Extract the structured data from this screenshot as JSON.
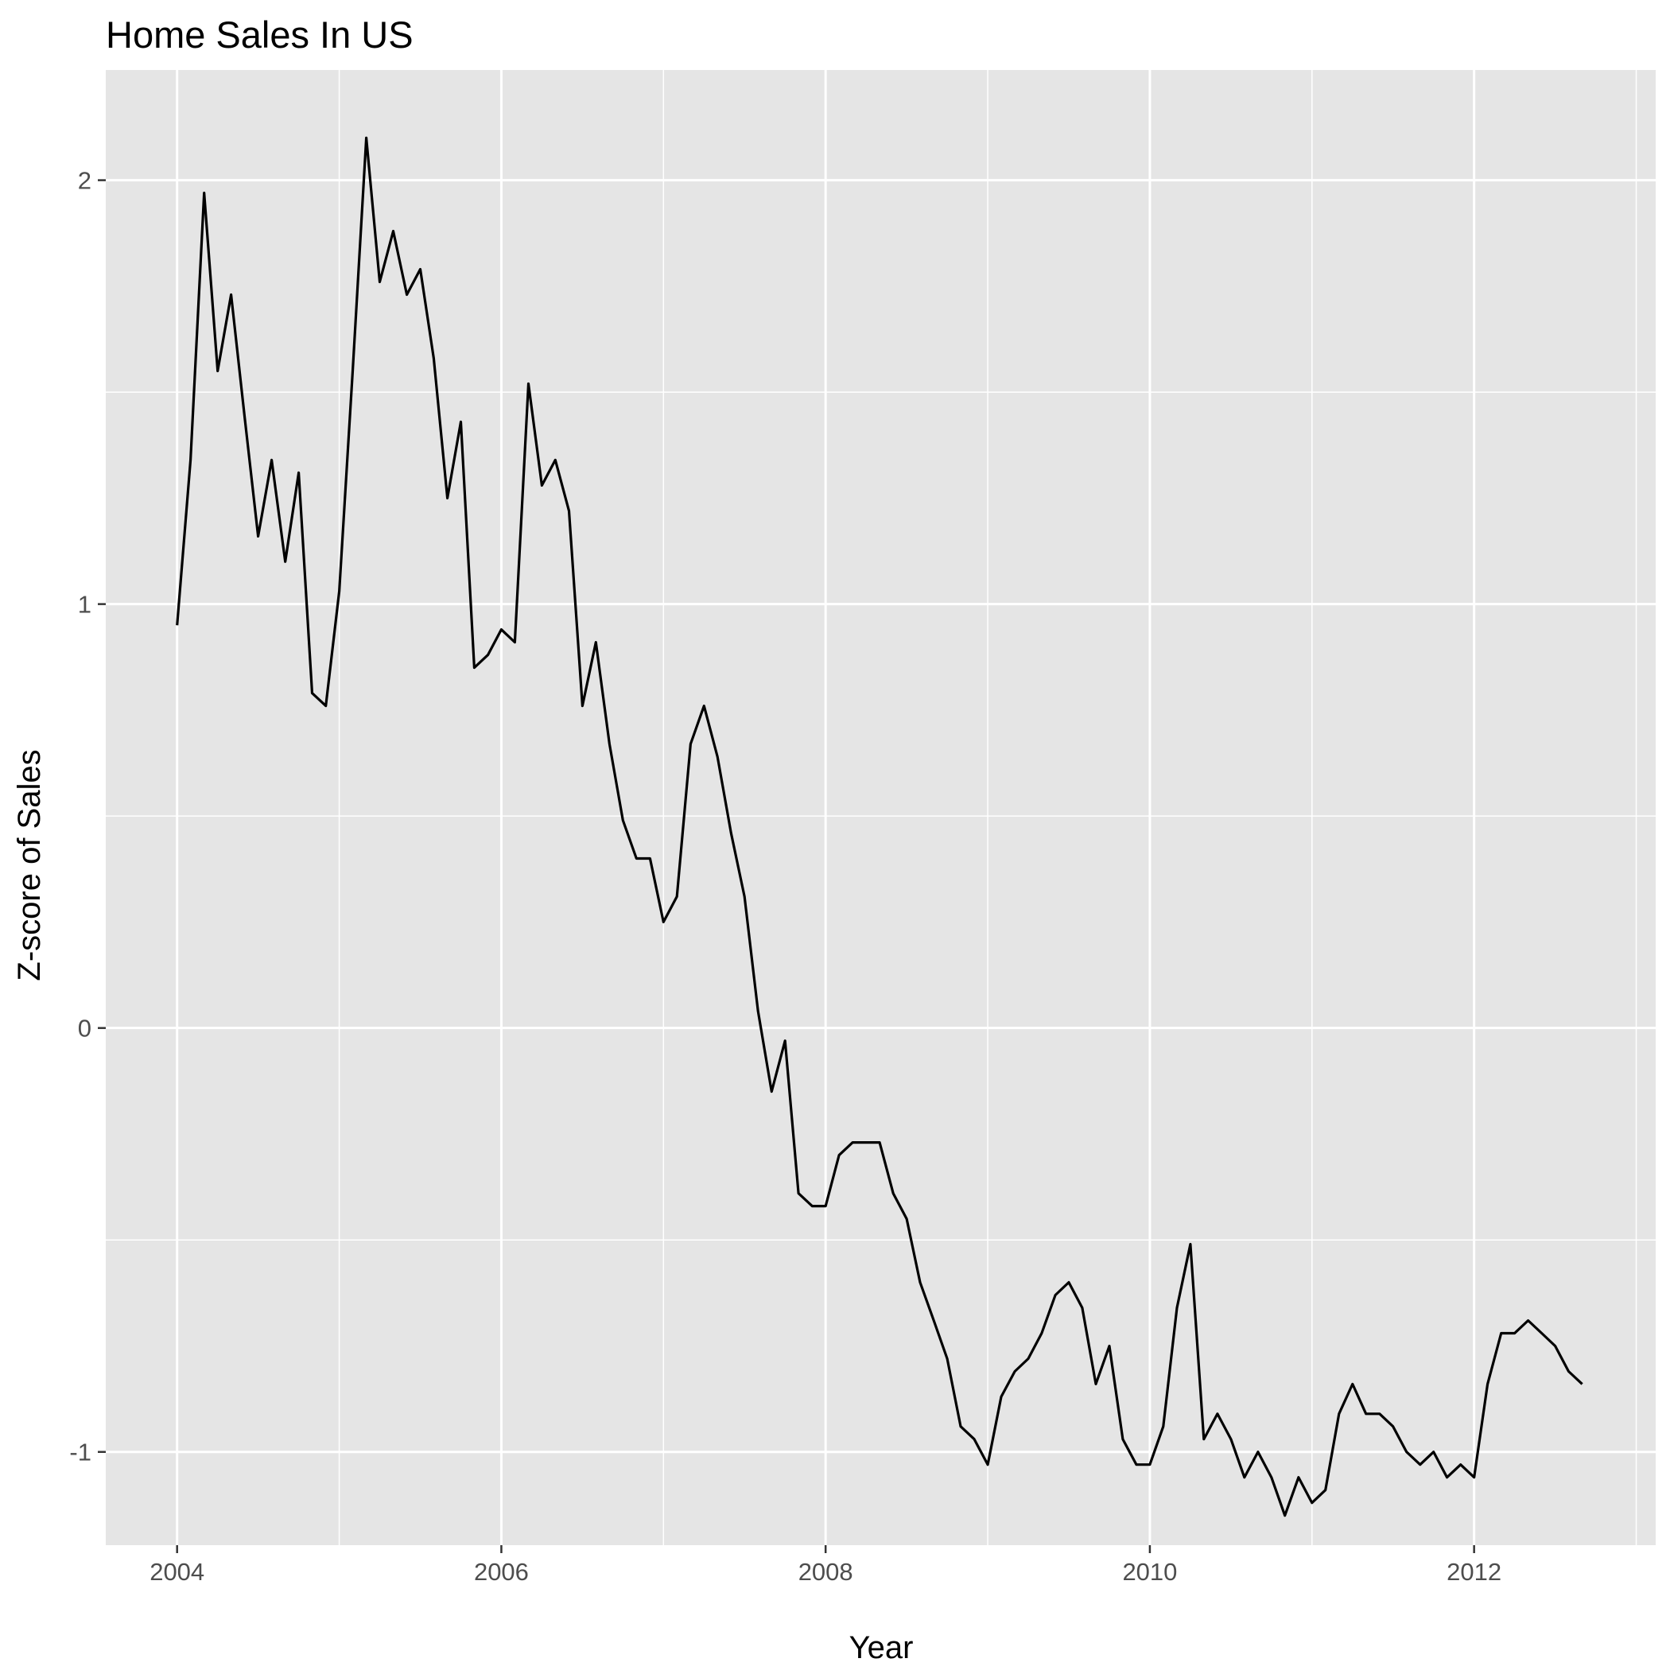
{
  "chart_data": {
    "type": "line",
    "title": "Home Sales In US",
    "xlabel": "Year",
    "ylabel": "Z-score of Sales",
    "xlim": [
      2003.56,
      2013.12
    ],
    "ylim": [
      -1.22,
      2.26
    ],
    "x_ticks": [
      2004,
      2006,
      2008,
      2010,
      2012
    ],
    "x_tick_labels": [
      "2004",
      "2006",
      "2008",
      "2010",
      "2012"
    ],
    "x_minor_ticks": [
      2005,
      2007,
      2009,
      2011,
      2013
    ],
    "y_ticks": [
      -1,
      0,
      1,
      2
    ],
    "y_tick_labels": [
      "-1",
      "0",
      "1",
      "2"
    ],
    "y_minor_ticks": [
      -0.5,
      0.5,
      1.5
    ],
    "grid": true,
    "legend": "none",
    "colors": {
      "panel_background": "#e5e5e5",
      "grid_line": "#ffffff",
      "series_line": "#000000",
      "tick_mark": "#333333"
    },
    "series": [
      {
        "x": [
          2004.0,
          2004.083,
          2004.167,
          2004.25,
          2004.333,
          2004.417,
          2004.5,
          2004.583,
          2004.667,
          2004.75,
          2004.833,
          2004.917,
          2005.0,
          2005.083,
          2005.167,
          2005.25,
          2005.333,
          2005.417,
          2005.5,
          2005.583,
          2005.667,
          2005.75,
          2005.833,
          2005.917,
          2006.0,
          2006.083,
          2006.167,
          2006.25,
          2006.333,
          2006.417,
          2006.5,
          2006.583,
          2006.667,
          2006.75,
          2006.833,
          2006.917,
          2007.0,
          2007.083,
          2007.167,
          2007.25,
          2007.333,
          2007.417,
          2007.5,
          2007.583,
          2007.667,
          2007.75,
          2007.833,
          2007.917,
          2008.0,
          2008.083,
          2008.167,
          2008.25,
          2008.333,
          2008.417,
          2008.5,
          2008.583,
          2008.667,
          2008.75,
          2008.833,
          2008.917,
          2009.0,
          2009.083,
          2009.167,
          2009.25,
          2009.333,
          2009.417,
          2009.5,
          2009.583,
          2009.667,
          2009.75,
          2009.833,
          2009.917,
          2010.0,
          2010.083,
          2010.167,
          2010.25,
          2010.333,
          2010.417,
          2010.5,
          2010.583,
          2010.667,
          2010.75,
          2010.833,
          2010.917,
          2011.0,
          2011.083,
          2011.167,
          2011.25,
          2011.333,
          2011.417,
          2011.5,
          2011.583,
          2011.667,
          2011.75,
          2011.833,
          2011.917,
          2012.0,
          2012.083,
          2012.167,
          2012.25,
          2012.333,
          2012.417,
          2012.5,
          2012.583,
          2012.667
        ],
        "values": [
          0.95,
          1.34,
          1.97,
          1.55,
          1.73,
          1.44,
          1.16,
          1.34,
          1.1,
          1.31,
          0.79,
          0.76,
          1.03,
          1.55,
          2.1,
          1.76,
          1.88,
          1.73,
          1.79,
          1.58,
          1.25,
          1.43,
          0.85,
          0.88,
          0.94,
          0.91,
          1.52,
          1.28,
          1.34,
          1.22,
          0.76,
          0.91,
          0.67,
          0.49,
          0.4,
          0.4,
          0.25,
          0.31,
          0.67,
          0.76,
          0.64,
          0.46,
          0.31,
          0.04,
          -0.15,
          -0.03,
          -0.39,
          -0.42,
          -0.42,
          -0.3,
          -0.27,
          -0.27,
          -0.27,
          -0.39,
          -0.45,
          -0.6,
          -0.69,
          -0.78,
          -0.94,
          -0.97,
          -1.03,
          -0.87,
          -0.81,
          -0.78,
          -0.72,
          -0.63,
          -0.6,
          -0.66,
          -0.84,
          -0.75,
          -0.97,
          -1.03,
          -1.03,
          -0.94,
          -0.66,
          -0.51,
          -0.97,
          -0.91,
          -0.97,
          -1.06,
          -1.0,
          -1.06,
          -1.15,
          -1.06,
          -1.12,
          -1.09,
          -0.91,
          -0.84,
          -0.91,
          -0.91,
          -0.94,
          -1.0,
          -1.03,
          -1.0,
          -1.06,
          -1.03,
          -1.06,
          -0.84,
          -0.72,
          -0.72,
          -0.69,
          -0.72,
          -0.75,
          -0.81,
          -0.84
        ]
      }
    ]
  }
}
